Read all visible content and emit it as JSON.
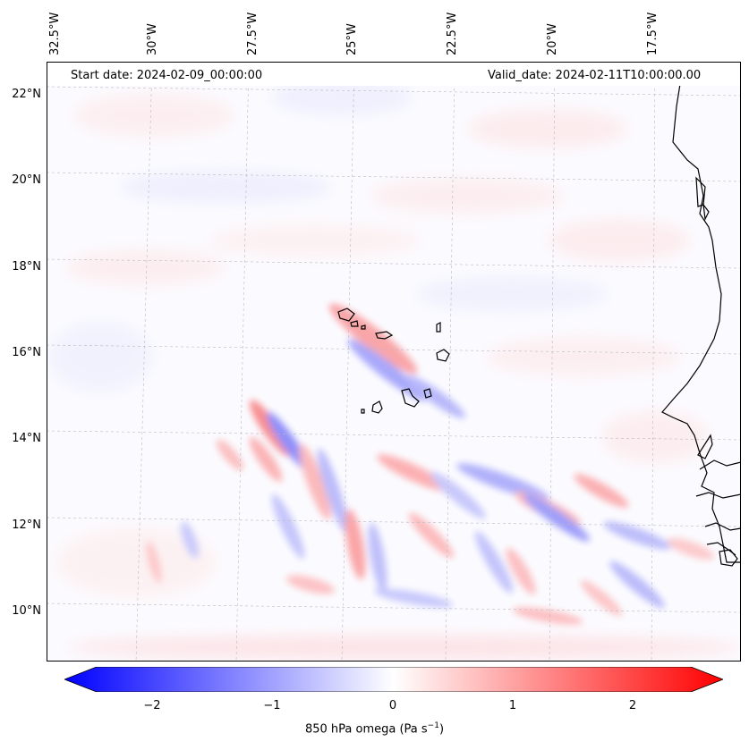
{
  "header": {
    "start_date": "Start date: 2024-02-09_00:00:00",
    "valid_date": "Valid_date: 2024-02-11T10:00:00.00"
  },
  "map": {
    "lon_labels": [
      "32.5°W",
      "30°W",
      "27.5°W",
      "25°W",
      "22.5°W",
      "20°W",
      "17.5°W"
    ],
    "lat_labels": [
      "22°N",
      "20°N",
      "18°N",
      "16°N",
      "14°N",
      "12°N",
      "10°N"
    ],
    "colormap": {
      "negative": "#0000ff",
      "zero": "#ffffff",
      "positive": "#ff0000"
    }
  },
  "colorbar": {
    "ticks": [
      "−2",
      "−1",
      "0",
      "1",
      "2"
    ],
    "label_prefix": "850 hPa omega (Pa s",
    "label_exp": "−1",
    "label_suffix": ")"
  }
}
